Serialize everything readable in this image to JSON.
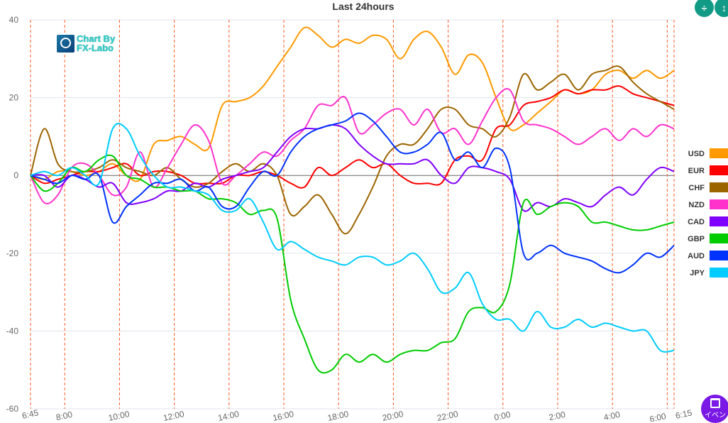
{
  "chart_data": {
    "type": "line",
    "title": "Last 24hours",
    "xlabel": "",
    "ylabel": "",
    "ylim": [
      -60,
      40
    ],
    "yticks": [
      40,
      20,
      0,
      -20,
      -40,
      -60
    ],
    "xlim_hours": [
      6.75,
      30.25
    ],
    "xticks": [
      {
        "hour": 6.75,
        "label": "6:45"
      },
      {
        "hour": 8,
        "label": "8:00"
      },
      {
        "hour": 10,
        "label": "10:00"
      },
      {
        "hour": 12,
        "label": "12:00"
      },
      {
        "hour": 14,
        "label": "14:00"
      },
      {
        "hour": 16,
        "label": "16:00"
      },
      {
        "hour": 18,
        "label": "18:00"
      },
      {
        "hour": 20,
        "label": "20:00"
      },
      {
        "hour": 22,
        "label": "22:00"
      },
      {
        "hour": 24,
        "label": "0:00"
      },
      {
        "hour": 26,
        "label": "2:00"
      },
      {
        "hour": 28,
        "label": "4:00"
      },
      {
        "hour": 30,
        "label": "6:00"
      },
      {
        "hour": 30.25,
        "label": "6:15"
      }
    ],
    "x_start_hour": 6.75,
    "x_step_hours": 0.5,
    "grid": true,
    "legend_position": "right",
    "series": [
      {
        "name": "USD",
        "color": "#ff9900",
        "values": [
          0,
          -1,
          1,
          1,
          0,
          1,
          3,
          0,
          -1,
          8,
          9,
          10,
          8,
          7,
          18,
          19,
          20,
          23,
          28,
          33,
          38,
          36,
          33,
          35,
          34,
          36,
          35,
          30,
          35,
          37,
          33,
          26,
          31,
          29,
          20,
          12,
          13,
          16,
          19,
          22,
          21,
          22,
          26,
          27,
          25,
          27,
          25,
          27
        ]
      },
      {
        "name": "EUR",
        "color": "#ff0000",
        "values": [
          0,
          -2,
          -1,
          0,
          1,
          1,
          2,
          3,
          0,
          1,
          1,
          0,
          -2,
          -2,
          -2,
          0,
          0,
          1,
          0,
          -2,
          -3,
          2,
          0,
          2,
          4,
          2,
          3,
          0,
          -2,
          -2,
          -2,
          4,
          5,
          4,
          12,
          13,
          18,
          19,
          20,
          22,
          21,
          22,
          22,
          23,
          21,
          20,
          19,
          18
        ]
      },
      {
        "name": "CHF",
        "color": "#9c6500",
        "values": [
          0,
          12,
          3,
          1,
          1,
          2,
          4,
          2,
          1,
          0,
          2,
          -1,
          -3,
          -2,
          1,
          3,
          1,
          3,
          0,
          -10,
          -8,
          -5,
          -10,
          -15,
          -10,
          -3,
          5,
          8,
          8,
          12,
          17,
          17,
          13,
          12,
          10,
          15,
          26,
          22,
          24,
          26,
          22,
          26,
          27,
          28,
          24,
          21,
          19,
          17
        ]
      },
      {
        "name": "NZD",
        "color": "#ff33cc",
        "values": [
          0,
          -7,
          -5,
          2,
          3,
          0,
          -5,
          -3,
          6,
          -3,
          2,
          8,
          13,
          9,
          -2,
          0,
          3,
          6,
          5,
          9,
          12,
          18,
          18,
          20,
          11,
          13,
          16,
          17,
          13,
          17,
          11,
          12,
          8,
          14,
          20,
          22,
          14,
          13,
          12,
          10,
          8,
          10,
          12,
          9,
          12,
          10,
          13,
          12
        ]
      },
      {
        "name": "CAD",
        "color": "#8000ff",
        "values": [
          0,
          0,
          -3,
          0,
          -1,
          -3,
          -2,
          -7,
          -7,
          -6,
          -4,
          -4,
          -2,
          -3,
          -1,
          0,
          1,
          2,
          6,
          10,
          12,
          12,
          13,
          12,
          8,
          5,
          3,
          3,
          3,
          4,
          0,
          -2,
          2,
          2,
          1,
          -1,
          -9,
          -7,
          -8,
          -6,
          -7,
          -8,
          -5,
          -3,
          -5,
          -1,
          2,
          1
        ]
      },
      {
        "name": "GBP",
        "color": "#00cc00",
        "values": [
          0,
          -4,
          -2,
          2,
          1,
          4,
          5,
          0,
          -1,
          -3,
          -3,
          -4,
          -4,
          -6,
          -6,
          -7,
          -10,
          -9,
          -11,
          -32,
          -42,
          -50,
          -50,
          -46,
          -48,
          -46,
          -48,
          -46,
          -45,
          -45,
          -43,
          -42,
          -35,
          -34,
          -35,
          -28,
          -7,
          -10,
          -8,
          -7,
          -8,
          -12,
          -12,
          -13,
          -14,
          -14,
          -13,
          -12
        ]
      },
      {
        "name": "AUD",
        "color": "#0033ff",
        "values": [
          0,
          -1,
          -2,
          0,
          -1,
          0,
          -12,
          -8,
          -5,
          -2,
          -2,
          -1,
          -4,
          -3,
          -8,
          -8,
          -3,
          1,
          0,
          6,
          10,
          12,
          13,
          14,
          16,
          14,
          10,
          6,
          6,
          8,
          11,
          4,
          6,
          2,
          7,
          2,
          -20,
          -20,
          -18,
          -20,
          -21,
          -22,
          -24,
          -25,
          -23,
          -20,
          -21,
          -18
        ]
      },
      {
        "name": "JPY",
        "color": "#00ccff",
        "values": [
          0,
          1,
          0,
          2,
          0,
          -2,
          12,
          12,
          5,
          0,
          -3,
          -3,
          -4,
          -5,
          -9,
          -9,
          -6,
          -12,
          -19,
          -17,
          -19,
          -21,
          -22,
          -23,
          -21,
          -21,
          -23,
          -22,
          -20,
          -24,
          -30,
          -29,
          -25,
          -33,
          -37,
          -37,
          -40,
          -35,
          -39,
          -39,
          -37,
          -39,
          -38,
          -39,
          -40,
          -40,
          -45,
          -45
        ]
      }
    ]
  },
  "watermark": {
    "line1": "Chart By",
    "line2": "FX-Labo"
  },
  "toolbar": {
    "collapse_icon": "collapse-icon",
    "expand_icon": "expand-icon"
  },
  "event_button": {
    "label": "イベン",
    "icon": "calendar-icon"
  },
  "colors": {
    "toolbar": "#119a86",
    "event": "#7a18e6",
    "vline": "#ff5722"
  }
}
